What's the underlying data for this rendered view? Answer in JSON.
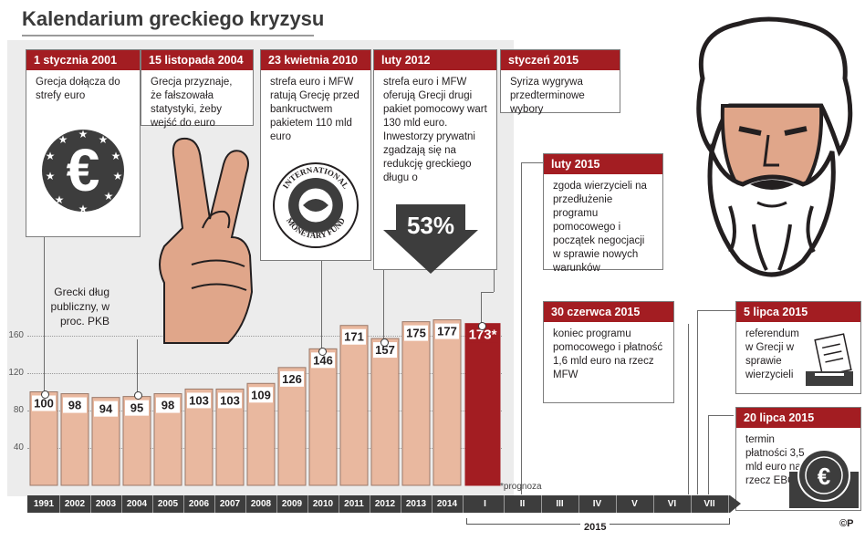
{
  "title": "Kalendarium greckiego kryzysu",
  "cards": {
    "c2001": {
      "date": "1 stycznia 2001",
      "text": "Grecja dołącza do strefy euro"
    },
    "c2004": {
      "date": "15 listopada 2004",
      "text": "Grecja przyznaje, że fałszowała statystyki, żeby wejść do euro"
    },
    "c2010": {
      "date": "23 kwietnia 2010",
      "text": "strefa euro i MFW ratują Grecję przed bankructwem pakietem 110 mld euro"
    },
    "c2012": {
      "date": "luty 2012",
      "text": "strefa euro i MFW oferują Grecji drugi pakiet pomocowy wart 130 mld euro. Inwestorzy prywatni zgadzają się na redukcję greckiego długu o",
      "highlight": "53%"
    },
    "c2015jan": {
      "date": "styczeń 2015",
      "text": "Syriza wygrywa przedterminowe wybory"
    },
    "c2015feb": {
      "date": "luty 2015",
      "text": "zgoda wierzycieli na przedłużenie programu pomocowego i początek negocjacji w sprawie nowych warunków"
    },
    "c2015jun": {
      "date": "30 czerwca 2015",
      "text": "koniec programu pomocowego i płatność 1,6 mld euro na rzecz MFW"
    },
    "c2015jul5": {
      "date": "5 lipca 2015",
      "text": "referendum w Grecji w sprawie wierzycieli"
    },
    "c2015jul20": {
      "date": "20 lipca 2015",
      "text": "termin płatności 3,5 mld euro na rzecz EBC"
    }
  },
  "imf_seal": {
    "top": "INTERNATIONAL",
    "bottom": "MONETARY FUND"
  },
  "colors": {
    "bar": "#e9b89f",
    "bar_highlight": "#a31d22",
    "header": "#a31d22",
    "axis": "#3d3d3d"
  },
  "chart_data": {
    "type": "bar",
    "ylabel": "Grecki dług publiczny, w proc. PKB",
    "ylim": [
      0,
      180
    ],
    "yticks": [
      0,
      40,
      80,
      120,
      160
    ],
    "categories": [
      "1991",
      "2002",
      "2003",
      "2004",
      "2005",
      "2006",
      "2007",
      "2008",
      "2009",
      "2010",
      "2011",
      "2012",
      "2013",
      "2014",
      "I"
    ],
    "values": [
      100,
      98,
      94,
      95,
      98,
      103,
      103,
      109,
      126,
      146,
      171,
      157,
      175,
      177,
      173
    ],
    "value_labels": [
      "100",
      "98",
      "94",
      "95",
      "98",
      "103",
      "103",
      "109",
      "126",
      "146",
      "171",
      "157",
      "175",
      "177",
      "173*"
    ],
    "highlight_index": 14,
    "months_2015": [
      "I",
      "II",
      "III",
      "IV",
      "V",
      "VI",
      "VII"
    ],
    "footnote": "*prognoza",
    "bracket_label": "2015"
  },
  "copyright": "©P"
}
